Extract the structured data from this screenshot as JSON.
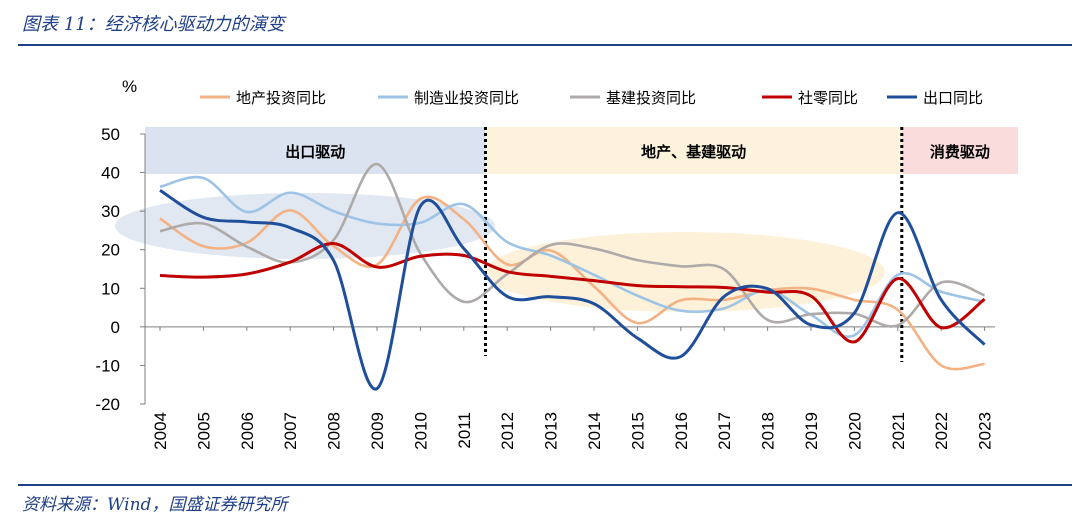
{
  "header": {
    "title": "图表 11：经济核心驱动力的演变"
  },
  "footer": {
    "source": "资料来源：Wind，国盛证券研究所"
  },
  "colors": {
    "rule": "#1f3f86",
    "region_export": "#dbe3f0",
    "region_invest": "#fdf3dd",
    "region_consume": "#fbdcdc",
    "ellipse_blue": "#dce4f0",
    "ellipse_yellow": "#fdf0d5"
  },
  "chart_data": {
    "type": "line",
    "unit_label": "%",
    "categories": [
      "2004",
      "2005",
      "2006",
      "2007",
      "2008",
      "2009",
      "2010",
      "2011",
      "2012",
      "2013",
      "2014",
      "2015",
      "2016",
      "2017",
      "2018",
      "2019",
      "2020",
      "2021",
      "2022",
      "2023"
    ],
    "ylim": [
      -20,
      50
    ],
    "yticks": [
      "50",
      "40",
      "30",
      "20",
      "10",
      "0",
      "-10",
      "-20"
    ],
    "legend_position": "top",
    "series": [
      {
        "name": "地产投资同比",
        "color": "#f4b183",
        "values": [
          28.1,
          20.9,
          21.8,
          30.2,
          20.9,
          16.1,
          33.2,
          27.9,
          16.2,
          19.8,
          10.5,
          1.0,
          6.9,
          7.0,
          9.5,
          9.9,
          7.0,
          4.4,
          -10.0,
          -9.6
        ]
      },
      {
        "name": "制造业投资同比",
        "color": "#9dc3e6",
        "values": [
          36.3,
          38.6,
          29.8,
          34.8,
          30.0,
          26.8,
          27.0,
          31.8,
          22.0,
          18.5,
          13.5,
          8.1,
          4.2,
          4.8,
          9.5,
          3.1,
          -2.2,
          13.5,
          9.1,
          6.5
        ]
      },
      {
        "name": "基建投资同比",
        "color": "#aeaaaa",
        "values": [
          24.8,
          26.8,
          20.8,
          16.7,
          22.5,
          42.2,
          19.0,
          6.5,
          13.7,
          21.2,
          20.3,
          17.3,
          15.7,
          14.9,
          1.8,
          3.3,
          3.4,
          0.4,
          11.5,
          8.2
        ]
      },
      {
        "name": "社零同比",
        "color": "#c00000",
        "values": [
          13.3,
          12.9,
          13.7,
          16.8,
          21.6,
          15.5,
          18.3,
          18.5,
          14.3,
          13.1,
          12.0,
          10.7,
          10.4,
          10.2,
          9.0,
          8.0,
          -3.9,
          12.5,
          -0.2,
          7.2
        ]
      },
      {
        "name": "出口同比",
        "color": "#1f4e9b",
        "values": [
          35.4,
          28.4,
          27.2,
          25.7,
          17.2,
          -16.0,
          31.3,
          20.3,
          7.9,
          7.8,
          6.0,
          -2.9,
          -7.7,
          7.9,
          9.9,
          0.5,
          3.6,
          29.6,
          7.0,
          -4.6
        ]
      }
    ],
    "regions": [
      {
        "label": "出口驱动",
        "from": "2004",
        "to": "2011"
      },
      {
        "label": "地产、基建驱动",
        "from": "2012",
        "to": "2021"
      },
      {
        "label": "消费驱动",
        "from": "2021",
        "to": "2023"
      }
    ]
  }
}
